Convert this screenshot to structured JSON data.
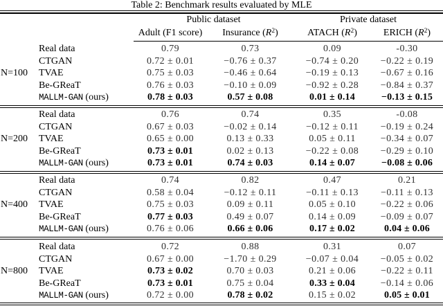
{
  "title": "Table 2: Benchmark results evaluated by MLE",
  "header": {
    "groups": [
      {
        "label": "Public dataset"
      },
      {
        "label": "Private dataset"
      }
    ],
    "columns": [
      {
        "dataset": "Adult",
        "metric": "F1 score"
      },
      {
        "dataset": "Insurance",
        "metric": "R²"
      },
      {
        "dataset": "ATACH",
        "metric": "R²"
      },
      {
        "dataset": "ERICH",
        "metric": "R²"
      }
    ]
  },
  "blocks": [
    {
      "size_label": "N=100",
      "rows": [
        {
          "method": "Real data",
          "mono": false,
          "values": [
            {
              "text": "0.79",
              "bold": false
            },
            {
              "text": "0.73",
              "bold": false
            },
            {
              "text": "0.09",
              "bold": false
            },
            {
              "text": "-0.30",
              "bold": false
            }
          ]
        },
        {
          "method": "CTGAN",
          "mono": false,
          "values": [
            {
              "text": "0.72 ± 0.01",
              "bold": false
            },
            {
              "text": "−0.76 ± 0.37",
              "bold": false
            },
            {
              "text": "−0.74 ± 0.20",
              "bold": false
            },
            {
              "text": "−0.22 ± 0.19",
              "bold": false
            }
          ]
        },
        {
          "method": "TVAE",
          "mono": false,
          "values": [
            {
              "text": "0.75 ± 0.03",
              "bold": false
            },
            {
              "text": "−0.46 ± 0.64",
              "bold": false
            },
            {
              "text": "−0.19 ± 0.13",
              "bold": false
            },
            {
              "text": "−0.67 ± 0.16",
              "bold": false
            }
          ]
        },
        {
          "method": "Be-GReaT",
          "mono": false,
          "values": [
            {
              "text": "0.76 ± 0.03",
              "bold": false
            },
            {
              "text": "−0.10 ± 0.09",
              "bold": false
            },
            {
              "text": "−0.92 ± 0.28",
              "bold": false
            },
            {
              "text": "−0.84 ± 0.37",
              "bold": false
            }
          ]
        },
        {
          "method": "MALLM-GAN",
          "suffix": " (ours)",
          "mono": true,
          "values": [
            {
              "text": "0.78 ± 0.03",
              "bold": true
            },
            {
              "text": "0.57 ± 0.08",
              "bold": true
            },
            {
              "text": "0.01 ± 0.14",
              "bold": true
            },
            {
              "text": "−0.13 ± 0.15",
              "bold": true
            }
          ]
        }
      ]
    },
    {
      "size_label": "N=200",
      "rows": [
        {
          "method": "Real data",
          "mono": false,
          "values": [
            {
              "text": "0.76",
              "bold": false
            },
            {
              "text": "0.74",
              "bold": false
            },
            {
              "text": "0.35",
              "bold": false
            },
            {
              "text": "-0.08",
              "bold": false
            }
          ]
        },
        {
          "method": "CTGAN",
          "mono": false,
          "values": [
            {
              "text": "0.67 ± 0.03",
              "bold": false
            },
            {
              "text": "−0.02 ± 0.14",
              "bold": false
            },
            {
              "text": "−0.12 ± 0.11",
              "bold": false
            },
            {
              "text": "−0.19 ± 0.24",
              "bold": false
            }
          ]
        },
        {
          "method": "TVAE",
          "mono": false,
          "values": [
            {
              "text": "0.65 ± 0.00",
              "bold": false
            },
            {
              "text": "0.13 ± 0.33",
              "bold": false
            },
            {
              "text": "0.05 ± 0.11",
              "bold": false
            },
            {
              "text": "−0.34 ± 0.07",
              "bold": false
            }
          ]
        },
        {
          "method": "Be-GReaT",
          "mono": false,
          "values": [
            {
              "text": "0.73 ± 0.01",
              "bold": true
            },
            {
              "text": "0.02 ± 0.13",
              "bold": false
            },
            {
              "text": "−0.22 ± 0.08",
              "bold": false
            },
            {
              "text": "−0.29 ± 0.10",
              "bold": false
            }
          ]
        },
        {
          "method": "MALLM-GAN",
          "suffix": " (ours)",
          "mono": true,
          "values": [
            {
              "text": "0.73 ± 0.01",
              "bold": true
            },
            {
              "text": "0.74 ± 0.03",
              "bold": true
            },
            {
              "text": "0.14 ± 0.07",
              "bold": true
            },
            {
              "text": "−0.08 ± 0.06",
              "bold": true
            }
          ]
        }
      ]
    },
    {
      "size_label": "N=400",
      "rows": [
        {
          "method": "Real data",
          "mono": false,
          "values": [
            {
              "text": "0.74",
              "bold": false
            },
            {
              "text": "0.82",
              "bold": false
            },
            {
              "text": "0.47",
              "bold": false
            },
            {
              "text": "0.21",
              "bold": false
            }
          ]
        },
        {
          "method": "CTGAN",
          "mono": false,
          "values": [
            {
              "text": "0.58 ± 0.04",
              "bold": false
            },
            {
              "text": "−0.12 ± 0.11",
              "bold": false
            },
            {
              "text": "−0.11 ± 0.13",
              "bold": false
            },
            {
              "text": "−0.11 ± 0.13",
              "bold": false
            }
          ]
        },
        {
          "method": "TVAE",
          "mono": false,
          "values": [
            {
              "text": "0.75 ± 0.03",
              "bold": false
            },
            {
              "text": "0.09 ± 0.11",
              "bold": false
            },
            {
              "text": "0.05 ± 0.10",
              "bold": false
            },
            {
              "text": "−0.22 ± 0.06",
              "bold": false
            }
          ]
        },
        {
          "method": "Be-GReaT",
          "mono": false,
          "values": [
            {
              "text": "0.77 ± 0.03",
              "bold": true
            },
            {
              "text": "0.49 ± 0.07",
              "bold": false
            },
            {
              "text": "0.14 ± 0.09",
              "bold": false
            },
            {
              "text": "−0.09 ± 0.07",
              "bold": false
            }
          ]
        },
        {
          "method": "MALLM-GAN",
          "suffix": " (ours)",
          "mono": true,
          "values": [
            {
              "text": "0.76 ± 0.06",
              "bold": false
            },
            {
              "text": "0.66 ± 0.06",
              "bold": true
            },
            {
              "text": "0.17 ± 0.02",
              "bold": true
            },
            {
              "text": "0.04 ± 0.06",
              "bold": true
            }
          ]
        }
      ]
    },
    {
      "size_label": "N=800",
      "rows": [
        {
          "method": "Real data",
          "mono": false,
          "values": [
            {
              "text": "0.72",
              "bold": false
            },
            {
              "text": "0.88",
              "bold": false
            },
            {
              "text": "0.31",
              "bold": false
            },
            {
              "text": "0.07",
              "bold": false
            }
          ]
        },
        {
          "method": "CTGAN",
          "mono": false,
          "values": [
            {
              "text": "0.67 ± 0.00",
              "bold": false
            },
            {
              "text": "−1.70 ± 0.29",
              "bold": false
            },
            {
              "text": "−0.07 ± 0.04",
              "bold": false
            },
            {
              "text": "−0.05 ± 0.02",
              "bold": false
            }
          ]
        },
        {
          "method": "TVAE",
          "mono": false,
          "values": [
            {
              "text": "0.73 ± 0.02",
              "bold": true
            },
            {
              "text": "0.70 ± 0.03",
              "bold": false
            },
            {
              "text": "0.21 ± 0.06",
              "bold": false
            },
            {
              "text": "−0.22 ± 0.11",
              "bold": false
            }
          ]
        },
        {
          "method": "Be-GReaT",
          "mono": false,
          "values": [
            {
              "text": "0.73 ± 0.01",
              "bold": true
            },
            {
              "text": "0.75 ± 0.04",
              "bold": false
            },
            {
              "text": "0.33 ± 0.04",
              "bold": true
            },
            {
              "text": "−0.14 ± 0.06",
              "bold": false
            }
          ]
        },
        {
          "method": "MALLM-GAN",
          "suffix": " (ours)",
          "mono": true,
          "values": [
            {
              "text": "0.72 ± 0.00",
              "bold": false
            },
            {
              "text": "0.78 ± 0.02",
              "bold": true
            },
            {
              "text": "0.15 ± 0.02",
              "bold": false
            },
            {
              "text": "0.05 ± 0.01",
              "bold": true
            }
          ]
        }
      ]
    }
  ]
}
